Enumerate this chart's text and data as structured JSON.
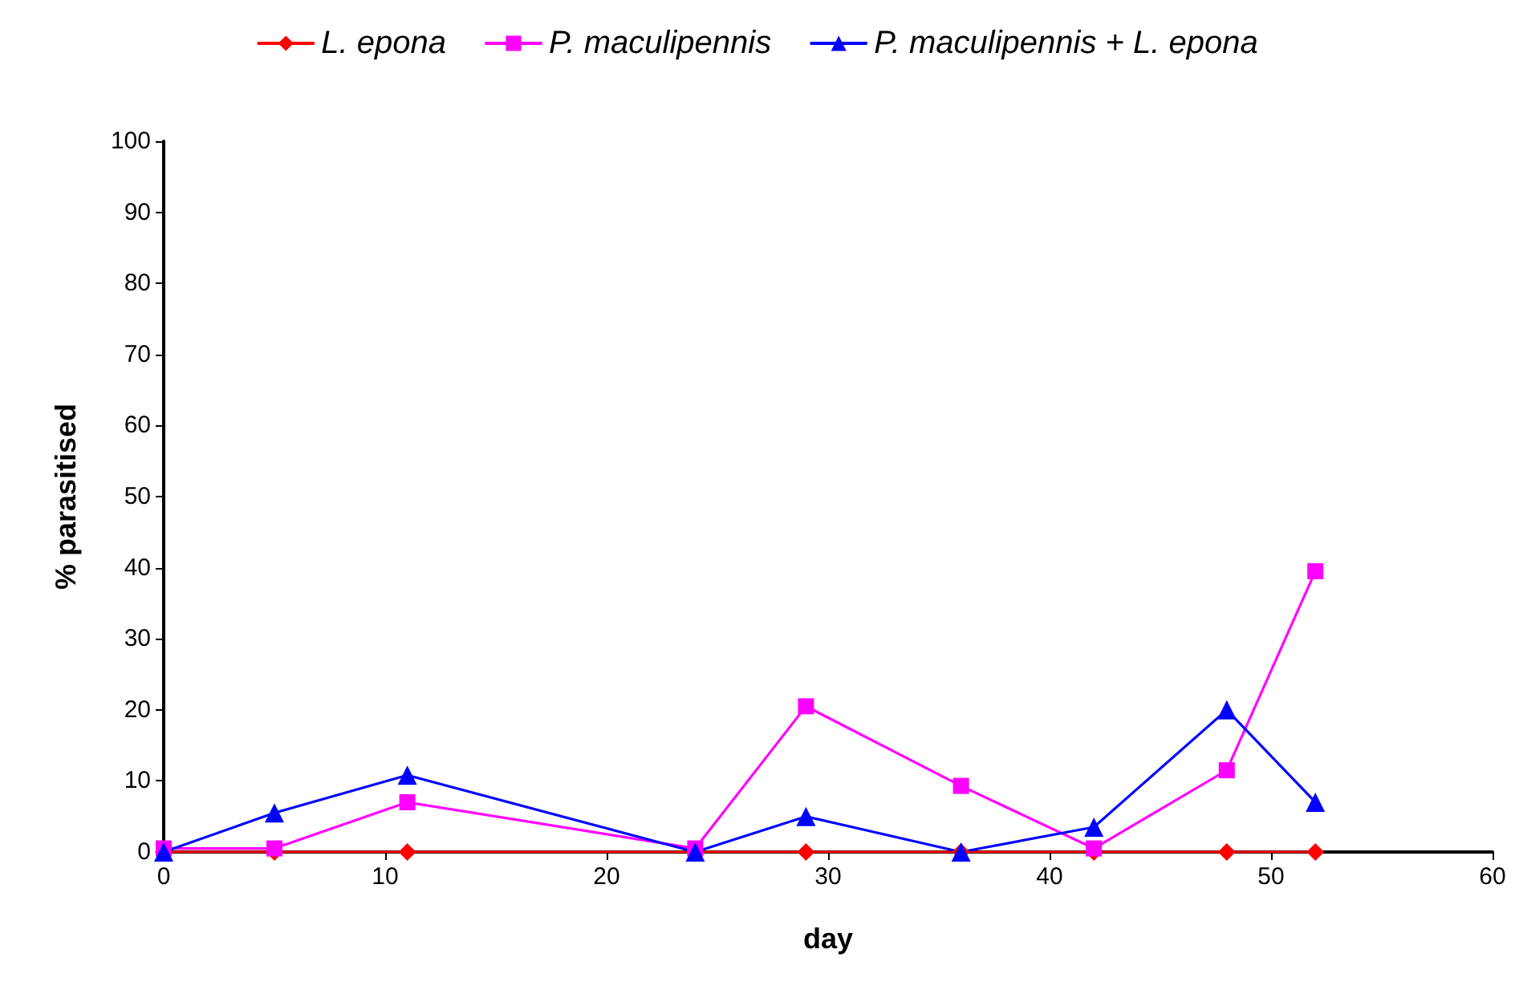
{
  "chart_data": {
    "type": "line",
    "xlabel": "day",
    "ylabel": "% parasitised",
    "x": [
      0,
      5,
      11,
      24,
      29,
      36,
      42,
      48,
      52
    ],
    "series": [
      {
        "name": "L. epona",
        "color": "#ff0000",
        "marker": "diamond",
        "values": [
          0,
          0,
          0,
          0,
          0,
          0,
          0,
          0,
          0
        ]
      },
      {
        "name": "P. maculipennis",
        "color": "#ff00ff",
        "marker": "square",
        "values": [
          0.5,
          0.5,
          7,
          0.5,
          20.5,
          9.3,
          0.5,
          11.5,
          39.5
        ]
      },
      {
        "name": "P. maculipennis + L. epona",
        "color": "#0000ff",
        "marker": "triangle",
        "values": [
          0,
          5.5,
          10.8,
          0,
          5,
          0,
          3.5,
          20,
          7
        ]
      }
    ],
    "xlim": [
      0,
      60
    ],
    "xticks": [
      0,
      10,
      20,
      30,
      40,
      50,
      60
    ],
    "ylim": [
      0,
      100
    ],
    "yticks": [
      0,
      10,
      20,
      30,
      40,
      50,
      60,
      70,
      80,
      90,
      100
    ],
    "grid": false,
    "legend": "top",
    "line_style": "solid"
  }
}
